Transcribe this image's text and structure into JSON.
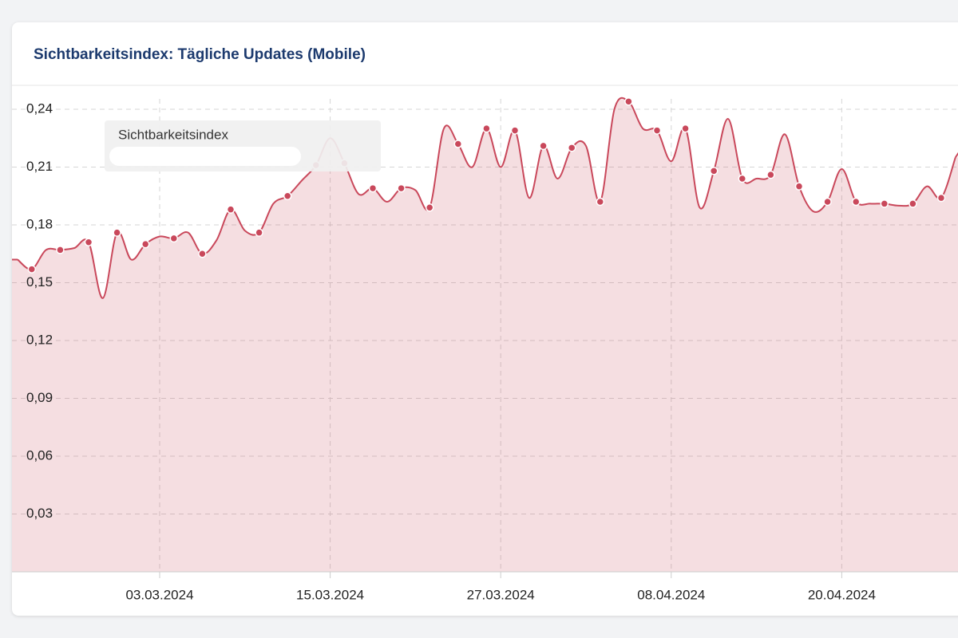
{
  "chart_data": {
    "type": "area",
    "title": "Sichtbarkeitsindex: Tägliche Updates (Mobile)",
    "x": [
      "22.02.2024",
      "23.02.2024",
      "24.02.2024",
      "25.02.2024",
      "26.02.2024",
      "27.02.2024",
      "28.02.2024",
      "29.02.2024",
      "01.03.2024",
      "02.03.2024",
      "03.03.2024",
      "04.03.2024",
      "05.03.2024",
      "06.03.2024",
      "07.03.2024",
      "08.03.2024",
      "09.03.2024",
      "10.03.2024",
      "11.03.2024",
      "12.03.2024",
      "13.03.2024",
      "14.03.2024",
      "15.03.2024",
      "16.03.2024",
      "17.03.2024",
      "18.03.2024",
      "19.03.2024",
      "20.03.2024",
      "21.03.2024",
      "22.03.2024",
      "23.03.2024",
      "24.03.2024",
      "25.03.2024",
      "26.03.2024",
      "27.03.2024",
      "28.03.2024",
      "29.03.2024",
      "30.03.2024",
      "31.03.2024",
      "01.04.2024",
      "02.04.2024",
      "03.04.2024",
      "04.04.2024",
      "05.04.2024",
      "06.04.2024",
      "07.04.2024",
      "08.04.2024",
      "09.04.2024",
      "10.04.2024",
      "11.04.2024",
      "12.04.2024",
      "13.04.2024",
      "14.04.2024",
      "15.04.2024",
      "16.04.2024",
      "17.04.2024",
      "18.04.2024",
      "19.04.2024",
      "20.04.2024",
      "21.04.2024",
      "22.04.2024",
      "23.04.2024",
      "24.04.2024",
      "25.04.2024",
      "26.04.2024",
      "27.04.2024",
      "28.04.2024"
    ],
    "series": [
      {
        "name": "Sichtbarkeitsindex",
        "color": "#c9485b",
        "values": [
          0.162,
          0.157,
          0.167,
          0.167,
          0.168,
          0.171,
          0.142,
          0.176,
          0.162,
          0.17,
          0.174,
          0.173,
          0.176,
          0.165,
          0.172,
          0.188,
          0.177,
          0.176,
          0.191,
          0.195,
          0.203,
          0.211,
          0.225,
          0.212,
          0.196,
          0.199,
          0.192,
          0.199,
          0.198,
          0.189,
          0.23,
          0.222,
          0.21,
          0.23,
          0.21,
          0.229,
          0.194,
          0.221,
          0.204,
          0.22,
          0.221,
          0.192,
          0.24,
          0.244,
          0.23,
          0.229,
          0.213,
          0.23,
          0.189,
          0.208,
          0.235,
          0.204,
          0.204,
          0.206,
          0.227,
          0.2,
          0.187,
          0.192,
          0.209,
          0.192,
          0.191,
          0.191,
          0.19,
          0.191,
          0.2,
          0.194,
          0.215
        ]
      }
    ],
    "xticks": [
      "03.03.2024",
      "15.03.2024",
      "27.03.2024",
      "08.04.2024",
      "20.04.2024"
    ],
    "ylim": [
      0,
      0.252
    ],
    "yticks": [
      {
        "value": 0.03,
        "label": "0,03"
      },
      {
        "value": 0.06,
        "label": "0,06"
      },
      {
        "value": 0.09,
        "label": "0,09"
      },
      {
        "value": 0.12,
        "label": "0,12"
      },
      {
        "value": 0.15,
        "label": "0,15"
      },
      {
        "value": 0.18,
        "label": "0,18"
      },
      {
        "value": 0.21,
        "label": "0,21"
      },
      {
        "value": 0.24,
        "label": "0,24"
      }
    ],
    "grid": true
  }
}
